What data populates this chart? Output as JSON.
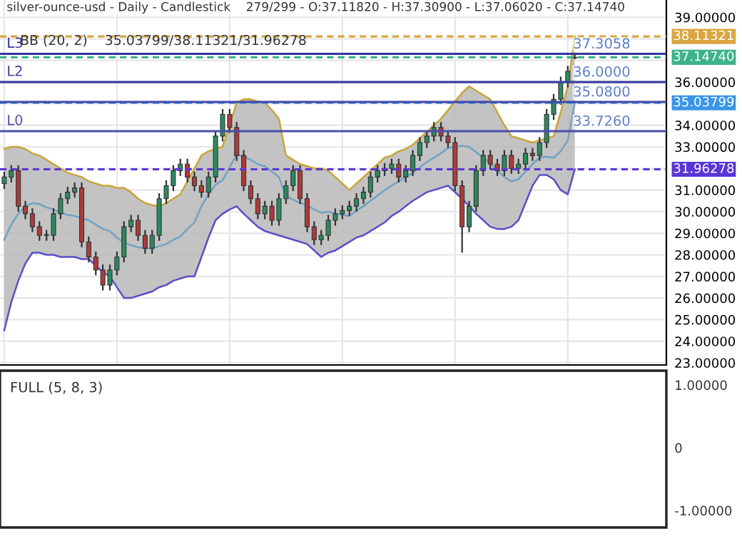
{
  "chart_data": [
    {
      "type": "candlestick",
      "title": "silver-ounce-usd - Daily - Candlestick    279/299 - O:37.11820 - H:37.30900 - L:37.06020 - C:37.14740",
      "subtitle": "BB (20, 2)    35.03799/38.11321/31.96278",
      "categories": [
        null,
        null,
        null,
        null,
        null,
        null,
        null,
        null,
        null,
        null,
        null,
        null,
        null,
        null,
        null,
        null,
        null,
        null,
        null,
        null,
        null,
        null,
        null,
        null,
        null,
        null,
        null,
        null,
        null,
        null,
        null,
        null,
        null,
        null,
        null,
        null,
        null,
        null,
        null,
        null,
        null,
        null,
        null,
        null,
        null,
        null,
        null,
        null,
        null,
        null,
        null,
        null,
        null,
        null,
        null,
        null,
        null,
        null,
        null,
        null,
        null,
        null,
        null,
        null,
        null,
        null,
        null,
        null,
        null,
        null,
        null,
        null,
        null,
        null,
        null,
        null,
        null,
        null,
        null,
        null,
        null,
        null
      ],
      "ohlc": [
        [
          31.3,
          31.85,
          31.05,
          31.6
        ],
        [
          31.6,
          32.15,
          31.35,
          31.9
        ],
        [
          31.9,
          32.15,
          30.0,
          30.25
        ],
        [
          30.25,
          30.5,
          29.65,
          29.9
        ],
        [
          29.9,
          30.15,
          29.05,
          29.3
        ],
        [
          29.3,
          29.55,
          28.65,
          28.9
        ],
        [
          28.9,
          29.15,
          28.65,
          28.9
        ],
        [
          28.9,
          30.15,
          28.65,
          29.9
        ],
        [
          29.9,
          30.85,
          29.65,
          30.6
        ],
        [
          30.6,
          31.15,
          30.35,
          30.9
        ],
        [
          30.9,
          31.35,
          30.65,
          31.1
        ],
        [
          31.1,
          31.35,
          28.35,
          28.6
        ],
        [
          28.6,
          28.85,
          27.65,
          27.9
        ],
        [
          27.9,
          28.15,
          27.05,
          27.3
        ],
        [
          27.3,
          27.55,
          26.35,
          26.6
        ],
        [
          26.6,
          27.55,
          26.35,
          27.3
        ],
        [
          27.3,
          28.15,
          27.05,
          27.9
        ],
        [
          27.9,
          29.55,
          27.65,
          29.3
        ],
        [
          29.3,
          29.85,
          29.05,
          29.6
        ],
        [
          29.6,
          29.85,
          28.65,
          28.9
        ],
        [
          28.9,
          29.15,
          28.05,
          28.3
        ],
        [
          28.3,
          29.15,
          28.05,
          28.9
        ],
        [
          28.9,
          30.85,
          28.65,
          30.6
        ],
        [
          30.6,
          31.45,
          30.35,
          31.2
        ],
        [
          31.2,
          32.15,
          30.95,
          31.9
        ],
        [
          31.9,
          32.45,
          31.65,
          32.2
        ],
        [
          32.2,
          32.45,
          31.35,
          31.6
        ],
        [
          31.6,
          31.85,
          30.95,
          31.2
        ],
        [
          31.2,
          31.45,
          30.65,
          30.9
        ],
        [
          30.9,
          31.85,
          30.65,
          31.6
        ],
        [
          31.6,
          33.75,
          31.35,
          33.5
        ],
        [
          33.5,
          34.75,
          33.25,
          34.5
        ],
        [
          34.5,
          34.75,
          33.65,
          33.9
        ],
        [
          33.9,
          34.15,
          32.35,
          32.6
        ],
        [
          32.6,
          32.85,
          30.95,
          31.2
        ],
        [
          31.2,
          31.45,
          30.35,
          30.6
        ],
        [
          30.6,
          30.85,
          29.65,
          29.9
        ],
        [
          29.9,
          30.5,
          29.65,
          30.25
        ],
        [
          30.25,
          30.5,
          29.35,
          29.6
        ],
        [
          29.6,
          30.85,
          29.35,
          30.6
        ],
        [
          30.6,
          31.45,
          30.35,
          31.2
        ],
        [
          31.2,
          32.15,
          30.95,
          31.9
        ],
        [
          31.9,
          32.15,
          30.35,
          30.6
        ],
        [
          30.6,
          30.85,
          29.05,
          29.3
        ],
        [
          29.3,
          29.55,
          28.45,
          28.7
        ],
        [
          28.7,
          29.15,
          28.45,
          28.9
        ],
        [
          28.9,
          29.85,
          28.65,
          29.6
        ],
        [
          29.6,
          30.15,
          29.35,
          29.9
        ],
        [
          29.9,
          30.3,
          29.65,
          30.05
        ],
        [
          30.05,
          30.5,
          29.8,
          30.25
        ],
        [
          30.25,
          30.85,
          30.0,
          30.6
        ],
        [
          30.6,
          31.15,
          30.35,
          30.9
        ],
        [
          30.9,
          31.85,
          30.65,
          31.6
        ],
        [
          31.6,
          32.15,
          31.35,
          31.9
        ],
        [
          31.9,
          32.25,
          31.65,
          32.0
        ],
        [
          32.0,
          32.45,
          31.75,
          32.2
        ],
        [
          32.2,
          32.45,
          31.35,
          31.6
        ],
        [
          31.6,
          32.15,
          31.35,
          31.9
        ],
        [
          31.9,
          32.85,
          31.65,
          32.6
        ],
        [
          32.6,
          33.45,
          32.35,
          33.2
        ],
        [
          33.2,
          33.75,
          32.95,
          33.5
        ],
        [
          33.5,
          34.15,
          33.25,
          33.9
        ],
        [
          33.9,
          34.15,
          33.25,
          33.5
        ],
        [
          33.5,
          33.75,
          32.95,
          33.2
        ],
        [
          33.2,
          33.45,
          30.95,
          31.2
        ],
        [
          31.2,
          31.45,
          28.1,
          29.3
        ],
        [
          29.3,
          30.5,
          29.05,
          30.25
        ],
        [
          30.25,
          32.15,
          30.0,
          31.9
        ],
        [
          31.9,
          32.85,
          31.65,
          32.6
        ],
        [
          32.6,
          32.85,
          31.95,
          32.2
        ],
        [
          32.2,
          32.45,
          31.65,
          31.9
        ],
        [
          31.9,
          32.85,
          31.65,
          32.6
        ],
        [
          32.6,
          32.85,
          31.75,
          32.0
        ],
        [
          32.0,
          32.45,
          31.75,
          32.2
        ],
        [
          32.2,
          32.95,
          31.95,
          32.7
        ],
        [
          32.7,
          32.95,
          32.35,
          32.6
        ],
        [
          32.6,
          33.45,
          32.35,
          33.2
        ],
        [
          33.2,
          34.75,
          32.95,
          34.5
        ],
        [
          34.5,
          35.45,
          34.25,
          35.2
        ],
        [
          35.2,
          36.25,
          34.95,
          36.0
        ],
        [
          36.0,
          36.75,
          35.75,
          36.5
        ],
        [
          37.1182,
          37.309,
          37.0602,
          37.1474
        ]
      ],
      "series": [
        {
          "type": "line",
          "color": "#c9a43a",
          "values": [
            32.9,
            33.0,
            33.0,
            32.9,
            32.7,
            32.6,
            32.4,
            32.2,
            32.0,
            31.8,
            31.7,
            31.6,
            31.4,
            31.3,
            31.2,
            31.2,
            31.1,
            31.1,
            30.9,
            30.6,
            30.4,
            30.3,
            30.25,
            30.4,
            30.6,
            30.8,
            31.4,
            32.0,
            32.6,
            32.8,
            32.9,
            33.0,
            34.0,
            35.05,
            35.2,
            35.2,
            35.1,
            35.05,
            34.7,
            34.3,
            32.6,
            32.4,
            32.2,
            32.1,
            32.0,
            32.0,
            31.9,
            31.6,
            31.3,
            31.0,
            31.3,
            31.6,
            31.9,
            32.2,
            32.5,
            32.6,
            32.8,
            32.9,
            33.1,
            33.4,
            33.7,
            34.0,
            34.3,
            34.7,
            35.1,
            35.5,
            35.8,
            35.6,
            35.4,
            35.2,
            34.6,
            34.0,
            33.5,
            33.4,
            33.3,
            33.2,
            33.3,
            33.4,
            33.5,
            34.6,
            35.8,
            38.11
          ]
        },
        {
          "type": "line",
          "color": "#5a4fc8",
          "values": [
            24.5,
            25.8,
            26.8,
            27.6,
            28.1,
            28.1,
            28.0,
            28.0,
            27.9,
            27.9,
            27.9,
            27.8,
            27.8,
            27.5,
            27.2,
            27.0,
            26.5,
            26.0,
            26.0,
            26.1,
            26.2,
            26.3,
            26.5,
            26.6,
            26.8,
            26.9,
            27.0,
            27.0,
            27.9,
            28.8,
            29.6,
            29.9,
            30.1,
            30.25,
            29.9,
            29.6,
            29.3,
            29.1,
            29.0,
            28.9,
            28.8,
            28.7,
            28.6,
            28.5,
            28.2,
            27.9,
            28.1,
            28.2,
            28.4,
            28.6,
            28.8,
            28.9,
            29.1,
            29.3,
            29.5,
            29.8,
            30.0,
            30.25,
            30.5,
            30.7,
            30.9,
            31.0,
            31.1,
            31.2,
            30.9,
            30.6,
            30.25,
            29.9,
            29.6,
            29.3,
            29.2,
            29.2,
            29.3,
            29.6,
            30.4,
            31.2,
            31.7,
            31.7,
            31.5,
            31.0,
            30.8,
            31.96
          ]
        },
        {
          "type": "line",
          "color": "#6fa3c4",
          "values": [
            28.7,
            29.4,
            29.9,
            30.25,
            30.4,
            30.35,
            30.2,
            30.1,
            29.95,
            29.85,
            29.8,
            29.7,
            29.6,
            29.4,
            29.2,
            29.1,
            28.8,
            28.55,
            28.45,
            28.35,
            28.3,
            28.3,
            28.4,
            28.5,
            28.7,
            28.85,
            29.2,
            29.5,
            30.25,
            30.8,
            31.25,
            31.45,
            32.05,
            32.65,
            32.55,
            32.4,
            32.2,
            32.1,
            31.85,
            31.6,
            30.7,
            30.55,
            30.4,
            30.3,
            30.1,
            29.95,
            30.0,
            29.9,
            29.85,
            29.8,
            30.05,
            30.25,
            30.5,
            30.75,
            31.0,
            31.2,
            31.4,
            31.6,
            31.8,
            32.05,
            32.3,
            32.5,
            32.7,
            32.95,
            33.0,
            33.05,
            33.0,
            32.75,
            32.5,
            32.25,
            31.9,
            31.6,
            31.4,
            31.5,
            31.85,
            32.2,
            32.5,
            32.55,
            32.5,
            32.8,
            33.3,
            35.04
          ],
          "lower": [
            24.5,
            25.8,
            26.8,
            27.6,
            28.1,
            28.1,
            28.0,
            28.0,
            27.9,
            27.9,
            27.9,
            27.8,
            27.8,
            27.5,
            27.2,
            27.0,
            26.5,
            26.0,
            26.0,
            26.1,
            26.2,
            26.3,
            26.5,
            26.6,
            26.8,
            26.9,
            27.0,
            27.0,
            27.9,
            28.8,
            29.6,
            29.9,
            30.1,
            30.25,
            29.9,
            29.6,
            29.3,
            29.1,
            29.0,
            28.9,
            28.8,
            28.7,
            28.6,
            28.5,
            28.2,
            27.9,
            28.1,
            28.2,
            28.4,
            28.6,
            28.8,
            28.9,
            29.1,
            29.3,
            29.5,
            29.8,
            30.0,
            30.25,
            30.5,
            30.7,
            30.9,
            31.0,
            31.1,
            31.2,
            30.9,
            30.6,
            30.25,
            29.9,
            29.6,
            29.3,
            29.2,
            29.2,
            29.3,
            29.6,
            30.4,
            31.2,
            31.7,
            31.7,
            31.5,
            31.0,
            30.8,
            31.96
          ],
          "upper": [
            32.9,
            33.0,
            33.0,
            32.9,
            32.7,
            32.6,
            32.4,
            32.2,
            32.0,
            31.8,
            31.7,
            31.6,
            31.4,
            31.3,
            31.2,
            31.2,
            31.1,
            31.1,
            30.9,
            30.6,
            30.4,
            30.3,
            30.25,
            30.4,
            30.6,
            30.8,
            31.4,
            32.0,
            32.6,
            32.8,
            32.9,
            33.0,
            34.0,
            35.05,
            35.2,
            35.2,
            35.1,
            35.05,
            34.7,
            34.3,
            32.6,
            32.4,
            32.2,
            32.1,
            32.0,
            32.0,
            31.9,
            31.6,
            31.3,
            31.0,
            31.3,
            31.6,
            31.9,
            32.2,
            32.5,
            32.6,
            32.8,
            32.9,
            33.1,
            33.4,
            33.7,
            34.0,
            34.3,
            34.7,
            35.1,
            35.5,
            35.8,
            35.6,
            35.4,
            35.2,
            34.6,
            34.0,
            33.5,
            33.4,
            33.3,
            33.2,
            33.3,
            33.4,
            33.5,
            34.6,
            35.8,
            38.11
          ]
        }
      ],
      "ylim": [
        22.9,
        39.8
      ],
      "yticks": [
        {
          "value": 23,
          "label": "23.00000"
        },
        {
          "value": 24,
          "label": "24.00000"
        },
        {
          "value": 25,
          "label": "25.00000"
        },
        {
          "value": 26,
          "label": "26.00000"
        },
        {
          "value": 27,
          "label": "27.00000"
        },
        {
          "value": 28,
          "label": "28.00000"
        },
        {
          "value": 29,
          "label": "29.00000"
        },
        {
          "value": 30,
          "label": "30.00000"
        },
        {
          "value": 31,
          "label": "31.00000"
        },
        {
          "value": 32,
          "label": null
        },
        {
          "value": 33,
          "label": "33.00000"
        },
        {
          "value": 34,
          "label": "34.00000"
        },
        {
          "value": 35,
          "label": null
        },
        {
          "value": 36,
          "label": "36.00000"
        },
        {
          "value": 37,
          "label": null
        },
        {
          "value": 38,
          "label": null
        },
        {
          "value": 39,
          "label": "39.00000"
        }
      ],
      "ref_lines": [
        {
          "axis": "y",
          "value": 38.11321,
          "label": "38.11321",
          "color": "#d9a640",
          "line_style": "dashed"
        },
        {
          "axis": "y",
          "value": 37.1474,
          "label": "37.14740",
          "color": "#3db38a",
          "line_style": "dashed"
        },
        {
          "axis": "y",
          "value": 35.03799,
          "label": "35.03799",
          "color": "#3a95e8",
          "line_style": "dashed"
        },
        {
          "axis": "y",
          "value": 31.96278,
          "label": "31.96278",
          "color": "#5b35d5",
          "line_style": "dashed"
        },
        {
          "axis": "y",
          "value": 37.3058,
          "label": "L3",
          "color": "#32369a",
          "line_style": "solid"
        },
        {
          "axis": "y",
          "value": 36.0,
          "label": "L2",
          "color": "#3a3ea0",
          "line_style": "solid"
        },
        {
          "axis": "y",
          "value": 35.08,
          "label": null,
          "color": "#4246a6",
          "line_style": "solid"
        },
        {
          "axis": "y",
          "value": 33.726,
          "label": "L0",
          "color": "#4a4eac",
          "line_style": "solid"
        }
      ],
      "annotations": [
        {
          "text": "37.3058",
          "y": 37.3058
        },
        {
          "text": "36.0000",
          "y": 36.0
        },
        {
          "text": "35.0800",
          "y": 35.08
        },
        {
          "text": "33.7260",
          "y": 33.726
        }
      ],
      "grid": true
    },
    {
      "type": "other",
      "title": "FULL (5, 8, 3)",
      "annotations": [
        "1.00000",
        "0",
        "-1.00000"
      ]
    }
  ]
}
